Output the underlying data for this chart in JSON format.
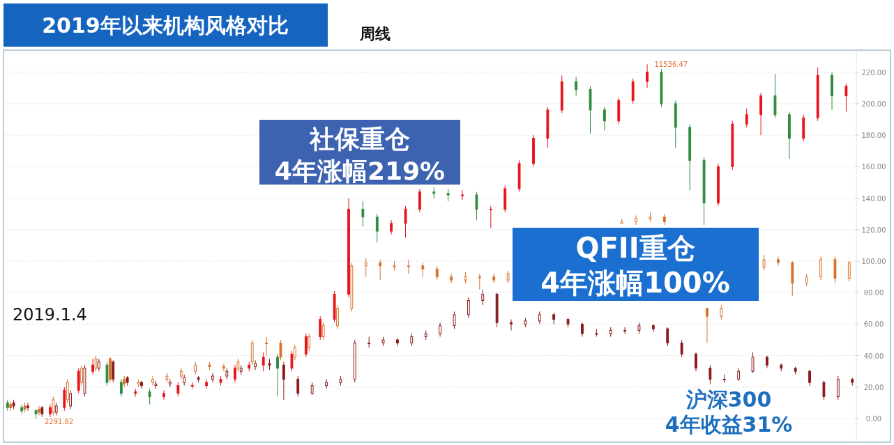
{
  "chart_data": {
    "type": "candlestick",
    "title": "2019年以来机构风格对比",
    "subtitle": "周线",
    "categories": [
      null,
      null,
      null,
      null,
      null,
      null,
      null,
      null,
      null,
      null,
      null,
      null,
      null,
      null,
      null,
      null,
      null,
      null,
      null,
      null,
      null,
      null,
      null,
      null,
      null,
      null,
      null,
      null,
      null,
      null,
      null,
      null,
      null,
      null,
      null,
      null,
      null,
      null,
      null,
      null,
      null,
      null,
      null,
      null,
      null,
      null,
      null,
      null,
      null,
      null,
      null,
      null,
      null,
      null,
      null,
      null,
      null,
      null,
      null,
      null
    ],
    "ylim": [
      -15,
      234
    ],
    "yticks": [
      {
        "value": 0,
        "label": "0.00"
      },
      {
        "value": 20,
        "label": "20.00"
      },
      {
        "value": 40,
        "label": "40.00"
      },
      {
        "value": 60,
        "label": "60.00"
      },
      {
        "value": 80,
        "label": "80.00"
      },
      {
        "value": 100,
        "label": "100.00"
      },
      {
        "value": 120,
        "label": "120.00"
      },
      {
        "value": 140,
        "label": "140.00"
      },
      {
        "value": 160,
        "label": "160.00"
      },
      {
        "value": 180,
        "label": "180.00"
      },
      {
        "value": 200,
        "label": "200.00"
      },
      {
        "value": 220,
        "label": "220.00"
      }
    ],
    "grid": "y",
    "annotations": [
      "2019.1.4",
      "11536.47",
      "2291.82",
      "社保重仓",
      "4年涨幅219%",
      "QFII重仓",
      "4年涨幅100%",
      "沪深300",
      "4年收益31%"
    ],
    "series": [
      {
        "colors": [
          "#2e8b3e",
          "#2e8b3e",
          "#2e8b3e",
          "#e8141b",
          "#e8141b",
          "#e8141b",
          "#e8141b",
          "#2e8b3e",
          "#2e8b3e",
          "#e8141b",
          "#2e8b3e",
          "#e8141b",
          "#e8141b",
          "#e8141b",
          "#e8141b",
          "#e8141b",
          "#e8141b",
          "#e8141b",
          "#e8141b",
          "#2e8b3e",
          "#e8141b",
          "#e8141b",
          "#e8141b",
          "#e8141b",
          "#e8141b",
          "#2e8b3e",
          "#2e8b3e",
          "#e8141b",
          "#e8141b",
          "#e8141b",
          "#2e8b3e",
          "#2e8b3e",
          "#e8141b",
          "#2e8b3e",
          "#e8141b",
          "#e8141b",
          "#e8141b",
          "#e8141b",
          "#e8141b",
          "#e8141b",
          "#2e8b3e",
          "#2e8b3e",
          "#2e8b3e",
          "#e8141b",
          "#e8141b",
          "#e8141b",
          "#2e8b3e",
          "#2e8b3e",
          "#2e8b3e",
          "#2e8b3e",
          "#e8141b",
          "#e8141b",
          "#e8141b",
          "#e8141b",
          "#2e8b3e",
          "#2e8b3e",
          "#e8141b",
          "#e8141b",
          "#2e8b3e",
          "#e8141b"
        ],
        "ohlc": [
          [
            10,
            12,
            5,
            7
          ],
          [
            7,
            9,
            3,
            5
          ],
          [
            5,
            6,
            0,
            3
          ],
          [
            3,
            9,
            1,
            7
          ],
          [
            7,
            20,
            5,
            18
          ],
          [
            18,
            32,
            16,
            30
          ],
          [
            30,
            38,
            28,
            34
          ],
          [
            34,
            36,
            21,
            23
          ],
          [
            23,
            25,
            14,
            16
          ],
          [
            16,
            19,
            14,
            17
          ],
          [
            17,
            19,
            9,
            14
          ],
          [
            14,
            18,
            12,
            16
          ],
          [
            16,
            23,
            14,
            21
          ],
          [
            21,
            23,
            19,
            21
          ],
          [
            21,
            25,
            19,
            23
          ],
          [
            23,
            27,
            21,
            25
          ],
          [
            25,
            34,
            23,
            32
          ],
          [
            32,
            36,
            30,
            34
          ],
          [
            34,
            42,
            30,
            39
          ],
          [
            39,
            41,
            14,
            32
          ],
          [
            32,
            43,
            30,
            41
          ],
          [
            41,
            54,
            39,
            52
          ],
          [
            52,
            65,
            50,
            63
          ],
          [
            63,
            81,
            61,
            79
          ],
          [
            79,
            140,
            77,
            133
          ],
          [
            133,
            138,
            122,
            128
          ],
          [
            128,
            130,
            112,
            119
          ],
          [
            119,
            126,
            117,
            124
          ],
          [
            124,
            135,
            115,
            133
          ],
          [
            133,
            146,
            131,
            144
          ],
          [
            144,
            147,
            140,
            143
          ],
          [
            143,
            146,
            138,
            142
          ],
          [
            142,
            145,
            139,
            142
          ],
          [
            142,
            144,
            126,
            133
          ],
          [
            133,
            135,
            121,
            133
          ],
          [
            133,
            148,
            131,
            146
          ],
          [
            146,
            164,
            144,
            162
          ],
          [
            162,
            180,
            160,
            178
          ],
          [
            178,
            198,
            172,
            196
          ],
          [
            196,
            218,
            194,
            214
          ],
          [
            214,
            217,
            205,
            209
          ],
          [
            209,
            211,
            181,
            196
          ],
          [
            196,
            198,
            183,
            189
          ],
          [
            189,
            204,
            187,
            202
          ],
          [
            202,
            216,
            200,
            214
          ],
          [
            214,
            225,
            210,
            220
          ],
          [
            220,
            222,
            198,
            200
          ],
          [
            200,
            202,
            172,
            185
          ],
          [
            185,
            187,
            145,
            164
          ],
          [
            164,
            166,
            123,
            137
          ],
          [
            137,
            162,
            135,
            160
          ],
          [
            160,
            189,
            158,
            187
          ],
          [
            187,
            197,
            185,
            193
          ],
          [
            193,
            207,
            180,
            205
          ],
          [
            205,
            219,
            191,
            193
          ],
          [
            193,
            195,
            165,
            178
          ],
          [
            178,
            193,
            176,
            191
          ],
          [
            191,
            223,
            189,
            218
          ],
          [
            218,
            220,
            196,
            205
          ],
          [
            205,
            213,
            195,
            211
          ]
        ]
      },
      {
        "color": "#d9702a",
        "ohlc": [
          [
            9,
            11,
            5,
            7
          ],
          [
            8,
            10,
            4,
            6
          ],
          [
            6,
            8,
            2,
            4
          ],
          [
            4,
            14,
            2,
            12
          ],
          [
            12,
            25,
            10,
            23
          ],
          [
            23,
            34,
            21,
            32
          ],
          [
            32,
            40,
            30,
            38
          ],
          [
            38,
            39,
            23,
            25
          ],
          [
            25,
            27,
            20,
            22
          ],
          [
            22,
            25,
            20,
            23
          ],
          [
            23,
            27,
            21,
            25
          ],
          [
            25,
            29,
            23,
            27
          ],
          [
            27,
            32,
            25,
            30
          ],
          [
            30,
            36,
            28,
            34
          ],
          [
            34,
            36,
            31,
            33
          ],
          [
            33,
            35,
            30,
            32
          ],
          [
            32,
            38,
            30,
            36
          ],
          [
            36,
            50,
            34,
            48
          ],
          [
            48,
            52,
            40,
            48
          ],
          [
            48,
            50,
            37,
            39
          ],
          [
            39,
            47,
            37,
            45
          ],
          [
            45,
            54,
            43,
            52
          ],
          [
            52,
            61,
            50,
            59
          ],
          [
            59,
            72,
            57,
            70
          ],
          [
            70,
            99,
            68,
            97
          ],
          [
            97,
            102,
            90,
            99
          ],
          [
            99,
            101,
            88,
            97
          ],
          [
            97,
            100,
            94,
            97
          ],
          [
            97,
            101,
            92,
            97
          ],
          [
            97,
            99,
            90,
            95
          ],
          [
            95,
            97,
            88,
            90
          ],
          [
            90,
            92,
            86,
            88
          ],
          [
            88,
            93,
            86,
            90
          ],
          [
            90,
            92,
            82,
            90
          ],
          [
            90,
            92,
            86,
            88
          ],
          [
            88,
            94,
            86,
            92
          ],
          null,
          null,
          null,
          null,
          null,
          null,
          null,
          [
            124,
            127,
            124,
            125
          ],
          [
            125,
            129,
            123,
            127
          ],
          [
            127,
            131,
            125,
            128
          ],
          [
            128,
            130,
            123,
            125
          ],
          null,
          null,
          [
            70,
            70,
            48,
            65
          ],
          [
            65,
            72,
            63,
            70
          ],
          null,
          null,
          [
            96,
            104,
            94,
            101
          ],
          [
            101,
            103,
            97,
            99
          ],
          [
            99,
            100,
            78,
            86
          ],
          [
            86,
            92,
            84,
            90
          ],
          [
            90,
            103,
            88,
            101
          ],
          [
            101,
            103,
            86,
            89
          ],
          [
            89,
            100,
            87,
            99
          ]
        ]
      },
      {
        "color": "#8b1a1a",
        "ohlc": [
          [
            10,
            12,
            6,
            8
          ],
          [
            8,
            10,
            5,
            7
          ],
          [
            7,
            8,
            1,
            3
          ],
          [
            4,
            10,
            2,
            8
          ],
          [
            8,
            18,
            6,
            16
          ],
          [
            16,
            34,
            14,
            32
          ],
          [
            32,
            38,
            30,
            36
          ],
          [
            36,
            37,
            23,
            25
          ],
          [
            26,
            27,
            21,
            23
          ],
          [
            23,
            24,
            19,
            21
          ],
          [
            21,
            24,
            19,
            22
          ],
          [
            22,
            25,
            20,
            23
          ],
          [
            23,
            28,
            21,
            26
          ],
          [
            26,
            27,
            23,
            25
          ],
          [
            25,
            29,
            23,
            27
          ],
          [
            27,
            32,
            25,
            30
          ],
          [
            30,
            34,
            28,
            32
          ],
          [
            33,
            37,
            31,
            35
          ],
          [
            35,
            38,
            31,
            34
          ],
          [
            34,
            36,
            12,
            25
          ],
          [
            25,
            27,
            14,
            16
          ],
          [
            16,
            23,
            15,
            21
          ],
          [
            21,
            25,
            19,
            23
          ],
          [
            23,
            27,
            21,
            25
          ],
          [
            25,
            50,
            23,
            48
          ],
          [
            48,
            52,
            45,
            48
          ],
          [
            48,
            52,
            46,
            50
          ],
          [
            50,
            51,
            46,
            48
          ],
          [
            48,
            54,
            46,
            52
          ],
          [
            52,
            56,
            50,
            54
          ],
          [
            54,
            61,
            52,
            59
          ],
          [
            59,
            68,
            57,
            66
          ],
          [
            66,
            77,
            64,
            75
          ],
          [
            75,
            82,
            72,
            79
          ],
          [
            79,
            80,
            58,
            61
          ],
          [
            61,
            63,
            56,
            60
          ],
          [
            60,
            64,
            58,
            62
          ],
          [
            62,
            68,
            60,
            66
          ],
          [
            66,
            67,
            60,
            63
          ],
          [
            63,
            64,
            58,
            60
          ],
          [
            60,
            61,
            52,
            54
          ],
          [
            54,
            57,
            52,
            54
          ],
          [
            54,
            58,
            52,
            56
          ],
          [
            56,
            58,
            54,
            56
          ],
          [
            56,
            61,
            54,
            59
          ],
          [
            59,
            60,
            55,
            57
          ],
          [
            57,
            58,
            46,
            48
          ],
          [
            48,
            50,
            39,
            41
          ],
          [
            41,
            42,
            30,
            32
          ],
          [
            32,
            34,
            22,
            25
          ],
          [
            25,
            28,
            23,
            25
          ],
          [
            25,
            32,
            24,
            30
          ],
          [
            30,
            42,
            29,
            39
          ],
          [
            39,
            40,
            32,
            34
          ],
          [
            34,
            35,
            30,
            32
          ],
          [
            32,
            33,
            28,
            30
          ],
          [
            30,
            31,
            21,
            23
          ],
          [
            23,
            24,
            12,
            14
          ],
          [
            14,
            27,
            12,
            25
          ],
          [
            25,
            26,
            21,
            23
          ]
        ]
      }
    ]
  }
}
